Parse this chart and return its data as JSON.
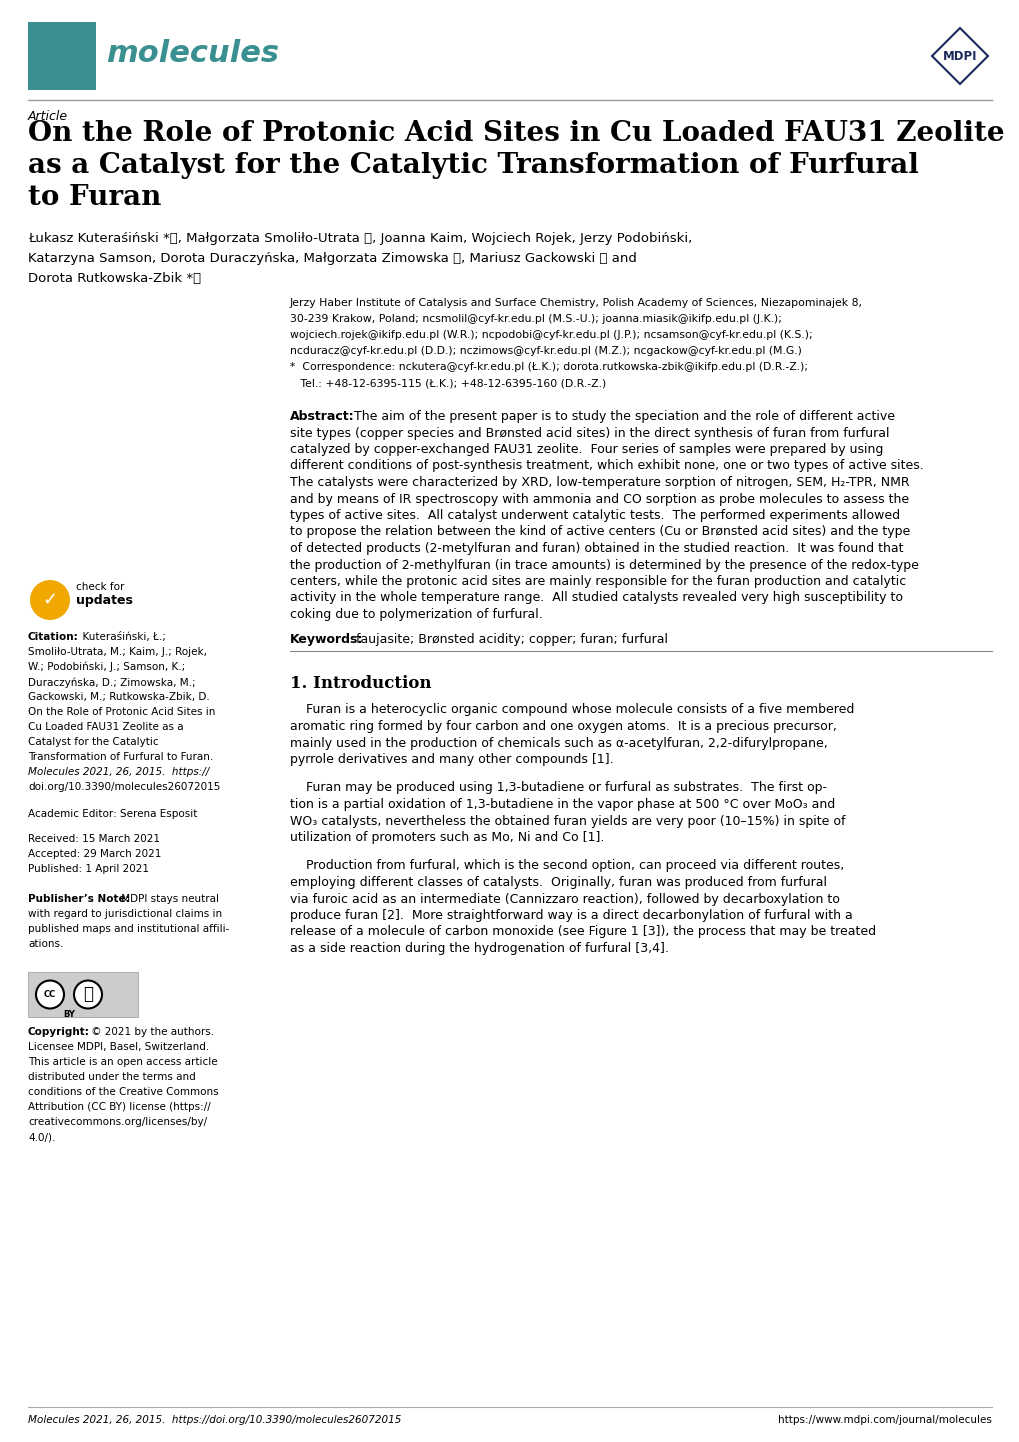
{
  "page_width": 10.2,
  "page_height": 14.42,
  "dpi": 100,
  "background_color": "#ffffff",
  "teal_color": "#3a9090",
  "teal_dark": "#2a7575",
  "mdpi_navy": "#1a2a5a",
  "gray_line": "#aaaaaa",
  "article_label": "Article",
  "title_line1": "On the Role of Protonic Acid Sites in Cu Loaded FAU31 Zeolite",
  "title_line2": "as a Catalyst for the Catalytic Transformation of Furfural",
  "title_line3": "to Furan",
  "authors_line1": "Łukasz Kuteraśiński *ⓘ, Małgorzata Smoliło-Utrata ⓘ, Joanna Kaim, Wojciech Rojek, Jerzy Podobiński,",
  "authors_line2": "Katarzyna Samson, Dorota Duraczуńska, Małgorzata Zimowska ⓘ, Mariusz Gackowski ⓘ and",
  "authors_line3": "Dorota Rutkowska-Zbik *ⓘ",
  "aff1": "Jerzy Haber Institute of Catalysis and Surface Chemistry, Polish Academy of Sciences, Niezapominajek 8,",
  "aff2": "30-239 Krakow, Poland; ncsmolil@cyf-kr.edu.pl (M.S.-U.); joanna.miasik@ikifp.edu.pl (J.K.);",
  "aff3": "wojciech.rojek@ikifp.edu.pl (W.R.); ncpodobi@cyf-kr.edu.pl (J.P.); ncsamson@cyf-kr.edu.pl (K.S.);",
  "aff4": "ncduracz@cyf-kr.edu.pl (D.D.); nczimows@cyf-kr.edu.pl (M.Z.); ncgackow@cyf-kr.edu.pl (M.G.)",
  "corr1": "*  Correspondence: nckutera@cyf-kr.edu.pl (Ł.K.); dorota.rutkowska-zbik@ikifp.edu.pl (D.R.-Z.);",
  "corr2": "   Tel.: +48-12-6395-115 (Ł.K.); +48-12-6395-160 (D.R.-Z.)",
  "abstract_lines": [
    "Abstract: The aim of the present paper is to study the speciation and the role of different active",
    "site types (copper species and Brønsted acid sites) in the direct synthesis of furan from furfural",
    "catalyzed by copper-exchanged FAU31 zeolite.  Four series of samples were prepared by using",
    "different conditions of post-synthesis treatment, which exhibit none, one or two types of active sites.",
    "The catalysts were characterized by XRD, low-temperature sorption of nitrogen, SEM, H₂-TPR, NMR",
    "and by means of IR spectroscopy with ammonia and CO sorption as probe molecules to assess the",
    "types of active sites.  All catalyst underwent catalytic tests.  The performed experiments allowed",
    "to propose the relation between the kind of active centers (Cu or Brønsted acid sites) and the type",
    "of detected products (2-metylfuran and furan) obtained in the studied reaction.  It was found that",
    "the production of 2-methylfuran (in trace amounts) is determined by the presence of the redox-type",
    "centers, while the protonic acid sites are mainly responsible for the furan production and catalytic",
    "activity in the whole temperature range.  All studied catalysts revealed very high susceptibility to",
    "coking due to polymerization of furfural."
  ],
  "keywords_text": "Keywords: faujasite; Brønsted acidity; copper; furan; furfural",
  "intro_title": "1. Introduction",
  "intro_para1_lines": [
    "    Furan is a heterocyclic organic compound whose molecule consists of a five membered",
    "aromatic ring formed by four carbon and one oxygen atoms.  It is a precious precursor,",
    "mainly used in the production of chemicals such as α-acetylfuran, 2,2-difurylpropane,",
    "pyrrole derivatives and many other compounds [1]."
  ],
  "intro_para2_lines": [
    "    Furan may be produced using 1,3-butadiene or furfural as substrates.  The first op-",
    "tion is a partial oxidation of 1,3-butadiene in the vapor phase at 500 °C over MoO₃ and",
    "WO₃ catalysts, nevertheless the obtained furan yields are very poor (10–15%) in spite of",
    "utilization of promoters such as Mo, Ni and Co [1]."
  ],
  "intro_para3_lines": [
    "    Production from furfural, which is the second option, can proceed via different routes,",
    "employing different classes of catalysts.  Originally, furan was produced from furfural",
    "via furoic acid as an intermediate (Cannizzaro reaction), followed by decarboxylation to",
    "produce furan [2].  More straightforward way is a direct decarbonylation of furfural with a",
    "release of a molecule of carbon monoxide (see Figure 1 [3]), the process that may be treated",
    "as a side reaction during the hydrogenation of furfural [3,4]."
  ],
  "citation_lines": [
    "Kuteraśiński, Ł.;",
    "Smoliło-Utrata, M.; Kaim, J.; Rojek,",
    "W.; Podobiński, J.; Samson, K.;",
    "Duraczуńska, D.; Zimowska, M.;",
    "Gackowski, M.; Rutkowska-Zbik, D.",
    "On the Role of Protonic Acid Sites in",
    "Cu Loaded FAU31 Zeolite as a",
    "Catalyst for the Catalytic",
    "Transformation of Furfural to Furan.",
    "Molecules 2021, 26, 2015.  https://",
    "doi.org/10.3390/molecules26072015"
  ],
  "academic_editor": "Academic Editor: Serena Esposit",
  "received": "Received: 15 March 2021",
  "accepted": "Accepted: 29 March 2021",
  "published": "Published: 1 April 2021",
  "pn_lines": [
    "MDPI stays neutral",
    "with regard to jurisdictional claims in",
    "published maps and institutional affili-",
    "ations."
  ],
  "cr_lines": [
    "Copyright: © 2021 by the authors.",
    "Licensee MDPI, Basel, Switzerland.",
    "This article is an open access article",
    "distributed under the terms and",
    "conditions of the Creative Commons",
    "Attribution (CC BY) license (https://",
    "creativecommons.org/licenses/by/",
    "4.0/)."
  ],
  "footer_left": "Molecules 2021, 26, 2015.  https://doi.org/10.3390/molecules26072015",
  "footer_right": "https://www.mdpi.com/journal/molecules"
}
